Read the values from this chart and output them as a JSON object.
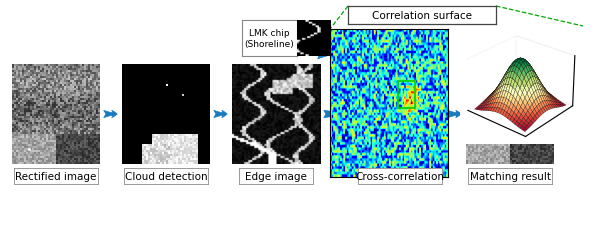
{
  "bg_color": "#ffffff",
  "labels": [
    "Rectified image",
    "Cloud detection",
    "Edge image",
    "Cross-correlation",
    "Matching result"
  ],
  "lmk_label": "LMK chip\n(Shoreline)",
  "corr_label": "Correlation surface",
  "arrow_color": "#1a7abf",
  "label_fontsize": 7.5,
  "label_box_color": "#ffffff",
  "label_box_edge": "#aaaaaa",
  "green_line_color": "#00aa00",
  "fig_width": 5.98,
  "fig_height": 2.53
}
